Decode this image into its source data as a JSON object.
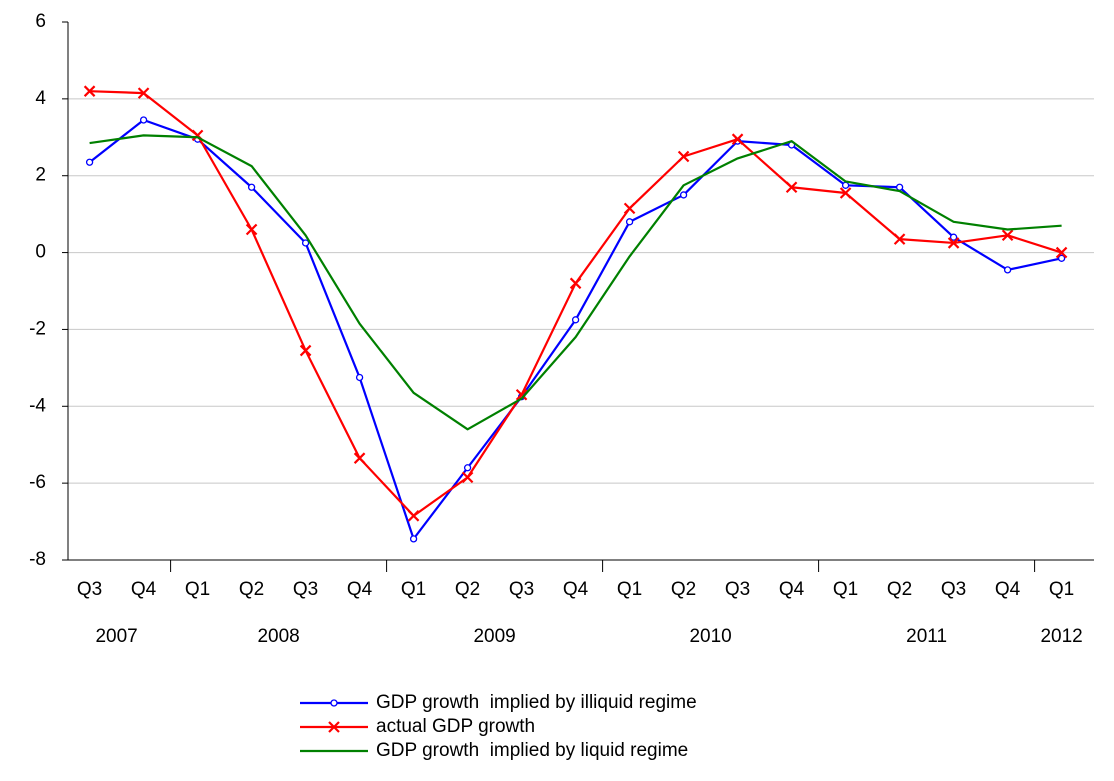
{
  "chart_data": {
    "type": "line",
    "categories": [
      "Q3",
      "Q4",
      "Q1",
      "Q2",
      "Q3",
      "Q4",
      "Q1",
      "Q2",
      "Q3",
      "Q4",
      "Q1",
      "Q2",
      "Q3",
      "Q4",
      "Q1",
      "Q2",
      "Q3",
      "Q4",
      "Q1"
    ],
    "category_groups": [
      {
        "label": "2007",
        "count": 2
      },
      {
        "label": "2008",
        "count": 4
      },
      {
        "label": "2009",
        "count": 4
      },
      {
        "label": "2010",
        "count": 4
      },
      {
        "label": "2011",
        "count": 4
      },
      {
        "label": "2012",
        "count": 1
      }
    ],
    "series": [
      {
        "name": "GDP growth  implied by illiquid regime",
        "color": "#0000ff",
        "marker": "circle",
        "values": [
          2.35,
          3.45,
          2.95,
          1.7,
          0.25,
          -3.25,
          -7.45,
          -5.6,
          -3.75,
          -1.75,
          0.8,
          1.5,
          2.9,
          2.8,
          1.75,
          1.7,
          0.4,
          -0.45,
          -0.15
        ]
      },
      {
        "name": "actual GDP growth",
        "color": "#ff0000",
        "marker": "x",
        "values": [
          4.2,
          4.15,
          3.05,
          0.6,
          -2.55,
          -5.35,
          -6.85,
          -5.85,
          -3.7,
          -0.8,
          1.15,
          2.5,
          2.95,
          1.7,
          1.55,
          0.35,
          0.25,
          0.45,
          0.0
        ]
      },
      {
        "name": "GDP growth  implied by liquid regime",
        "color": "#008000",
        "marker": "none",
        "values": [
          2.85,
          3.05,
          3.0,
          2.25,
          0.45,
          -1.85,
          -3.65,
          -4.6,
          -3.8,
          -2.2,
          -0.1,
          1.75,
          2.45,
          2.9,
          1.85,
          1.6,
          0.8,
          0.6,
          0.7
        ]
      }
    ],
    "ylim": [
      -8,
      6
    ],
    "yticks": [
      -8,
      -6,
      -4,
      -2,
      0,
      2,
      4,
      6
    ],
    "grid": true,
    "legend": "bottom"
  }
}
